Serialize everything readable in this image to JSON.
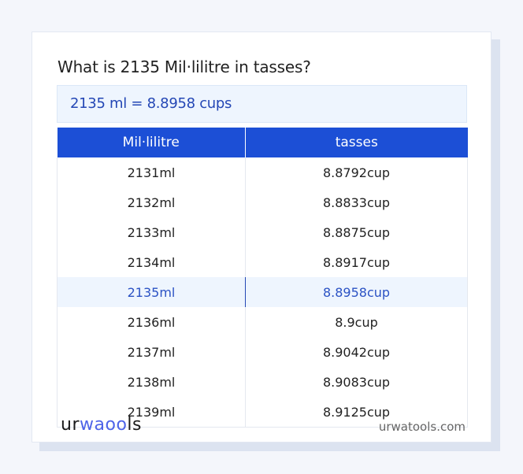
{
  "title": "What is 2135 Mil·lilitre in tasses?",
  "result": "2135 ml = 8.8958 cups",
  "table": {
    "headers": [
      "Mil·lilitre",
      "tasses"
    ],
    "rows": [
      [
        "2131ml",
        "8.8792cup"
      ],
      [
        "2132ml",
        "8.8833cup"
      ],
      [
        "2133ml",
        "8.8875cup"
      ],
      [
        "2134ml",
        "8.8917cup"
      ],
      [
        "2135ml",
        "8.8958cup"
      ],
      [
        "2136ml",
        "8.9cup"
      ],
      [
        "2137ml",
        "8.9042cup"
      ],
      [
        "2138ml",
        "8.9083cup"
      ],
      [
        "2139ml",
        "8.9125cup"
      ]
    ],
    "highlighted_row": 4
  },
  "footer": {
    "logo": "urwatools",
    "site": "urwatools.com"
  },
  "colors": {
    "accent": "#1c4fd6",
    "highlight_bg": "#eef5fe",
    "highlight_text": "#2b52c4"
  }
}
